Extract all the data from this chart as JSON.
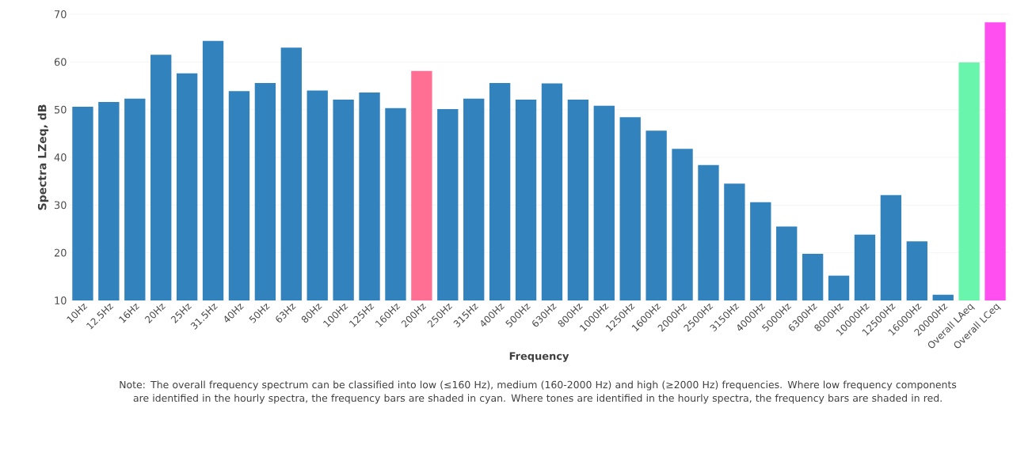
{
  "chart_data": {
    "type": "bar",
    "xlabel": "Frequency",
    "ylabel": "Spectra LZeq, dB",
    "categories": [
      "10Hz",
      "12.5Hz",
      "16Hz",
      "20Hz",
      "25Hz",
      "31.5Hz",
      "40Hz",
      "50Hz",
      "63Hz",
      "80Hz",
      "100Hz",
      "125Hz",
      "160Hz",
      "200Hz",
      "250Hz",
      "315Hz",
      "400Hz",
      "500Hz",
      "630Hz",
      "800Hz",
      "1000Hz",
      "1250Hz",
      "1600Hz",
      "2000Hz",
      "2500Hz",
      "3150Hz",
      "4000Hz",
      "5000Hz",
      "6300Hz",
      "8000Hz",
      "10000Hz",
      "12500Hz",
      "16000Hz",
      "20000Hz",
      "Overall LAeq",
      "Overall LCeq"
    ],
    "values": [
      50.6,
      51.6,
      52.3,
      61.5,
      57.6,
      64.4,
      53.9,
      55.6,
      63.0,
      54.0,
      52.1,
      53.6,
      50.3,
      58.1,
      50.1,
      52.3,
      55.6,
      52.1,
      55.5,
      52.1,
      50.8,
      48.4,
      45.6,
      41.8,
      38.4,
      34.5,
      30.6,
      25.5,
      19.8,
      15.2,
      23.8,
      32.1,
      22.4,
      11.2,
      59.9,
      68.3
    ],
    "colors": [
      "#3182bd",
      "#3182bd",
      "#3182bd",
      "#3182bd",
      "#3182bd",
      "#3182bd",
      "#3182bd",
      "#3182bd",
      "#3182bd",
      "#3182bd",
      "#3182bd",
      "#3182bd",
      "#3182bd",
      "#ff6e93",
      "#3182bd",
      "#3182bd",
      "#3182bd",
      "#3182bd",
      "#3182bd",
      "#3182bd",
      "#3182bd",
      "#3182bd",
      "#3182bd",
      "#3182bd",
      "#3182bd",
      "#3182bd",
      "#3182bd",
      "#3182bd",
      "#3182bd",
      "#3182bd",
      "#3182bd",
      "#3182bd",
      "#3182bd",
      "#3182bd",
      "#69f5ab",
      "#ff4ff0"
    ],
    "ylim": [
      10,
      70
    ],
    "yticks": [
      10,
      20,
      30,
      40,
      50,
      60,
      70
    ],
    "grid": "y",
    "annotations": [
      "Note: The overall frequency spectrum can be classified into low (≤160 Hz), medium (160-2000 Hz) and high (≥2000 Hz) frequencies. Where low frequency components are identified in the hourly spectra, the frequency bars are shaded in cyan. Where tones are identified in the hourly spectra, the frequency bars are shaded in red."
    ]
  }
}
